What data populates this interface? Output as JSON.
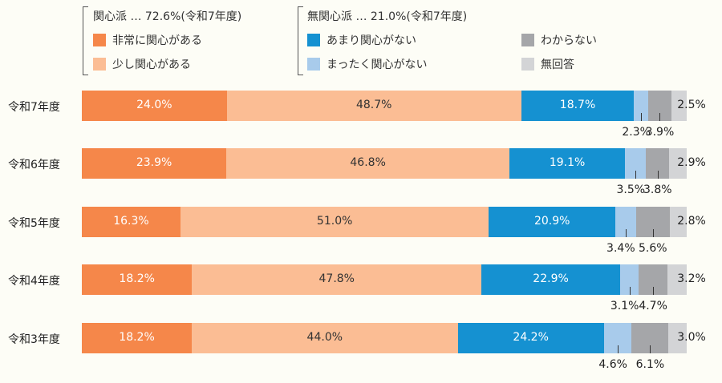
{
  "chart_data": {
    "type": "bar",
    "orientation": "horizontal",
    "stacked": true,
    "categories": [
      "令和7年度",
      "令和6年度",
      "令和5年度",
      "令和4年度",
      "令和3年度"
    ],
    "series": [
      {
        "name": "非常に関心がある",
        "color": "#f5874a",
        "values": [
          24.0,
          23.9,
          16.3,
          18.2,
          18.2
        ]
      },
      {
        "name": "少し関心がある",
        "color": "#fbbd94",
        "values": [
          48.7,
          46.8,
          51.0,
          47.8,
          44.0
        ]
      },
      {
        "name": "あまり関心がない",
        "color": "#1591d1",
        "values": [
          18.7,
          19.1,
          20.9,
          22.9,
          24.2
        ]
      },
      {
        "name": "まったく関心がない",
        "color": "#a8cbeb",
        "values": [
          2.3,
          3.5,
          3.4,
          3.1,
          4.6
        ]
      },
      {
        "name": "わからない",
        "color": "#a5a6a9",
        "values": [
          3.9,
          3.8,
          5.6,
          4.7,
          6.1
        ]
      },
      {
        "name": "無回答",
        "color": "#d3d4d6",
        "values": [
          2.5,
          2.9,
          2.8,
          3.2,
          3.0
        ]
      }
    ],
    "groups": [
      {
        "label": "関心派 … 72.6%(令和7年度)"
      },
      {
        "label": "無関心派 … 21.0%(令和7年度)"
      }
    ],
    "value_suffix": "%",
    "xlim": [
      0,
      100
    ],
    "legend": "top"
  }
}
